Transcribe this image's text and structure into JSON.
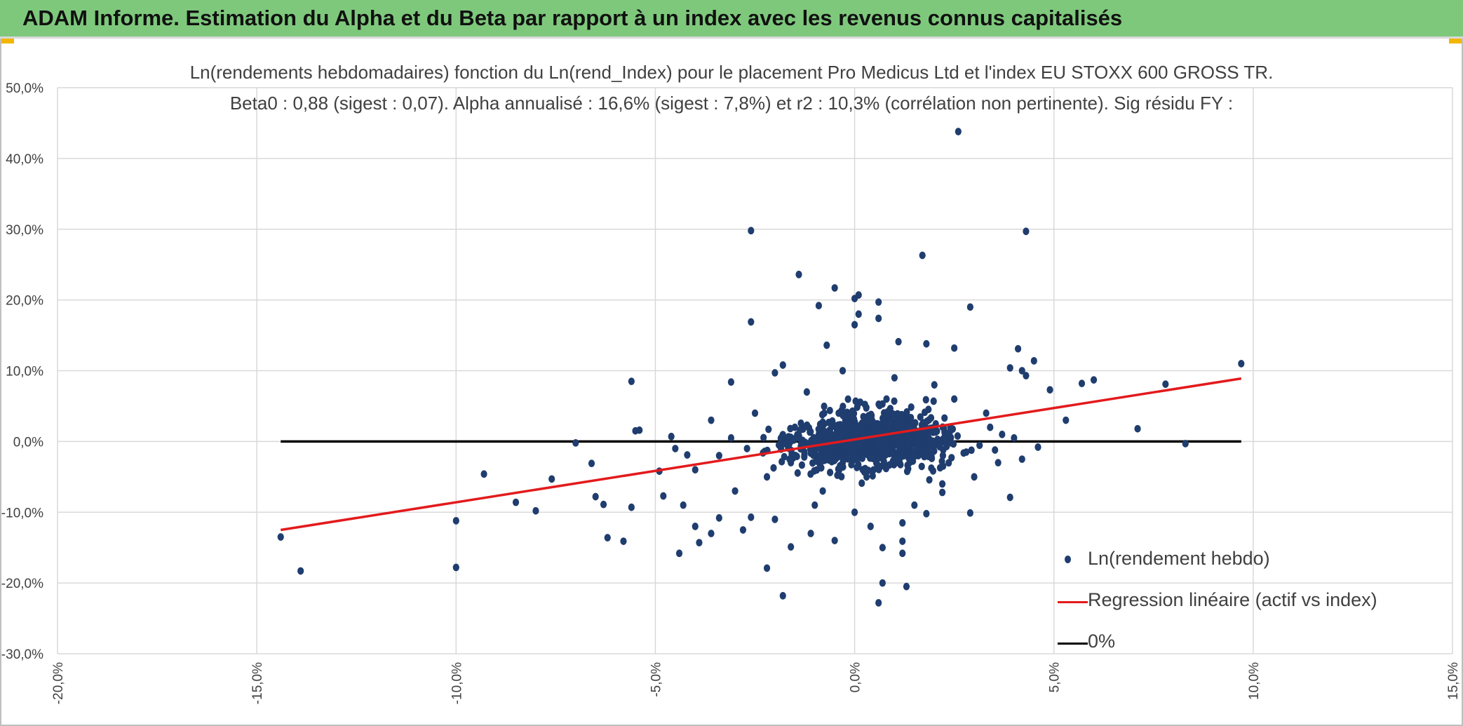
{
  "header": {
    "title": "ADAM Informe. Estimation du Alpha et du Beta par rapport à un index avec les revenus connus capitalisés"
  },
  "colors": {
    "banner": "#7ec87c",
    "points": "#1f3d6e",
    "regression": "#e31a1c",
    "zero_line": "#000000",
    "grid": "#d9d9d9"
  },
  "chart_data": {
    "type": "scatter",
    "title": "Ln(rendements hebdomadaires) fonction du Ln(rend_Index) pour le placement Pro Medicus Ltd et l'index EU STOXX 600 GROSS TR.",
    "subtitle": "Beta0 : 0,88 (sigest : 0,07). Alpha annualisé : 16,6% (sigest : 7,8%) et r2 : 10,3% (corrélation non pertinente). Sig résidu FY :",
    "xlabel": "",
    "ylabel": "",
    "xlim": [
      -0.2,
      0.15
    ],
    "ylim": [
      -0.3,
      0.5
    ],
    "x_ticks": [
      -0.2,
      -0.15,
      -0.1,
      -0.05,
      0.0,
      0.05,
      0.1,
      0.15
    ],
    "x_tick_labels": [
      "-20,0%",
      "-15,0%",
      "-10,0%",
      "-5,0%",
      "0,0%",
      "5,0%",
      "10,0%",
      "15,0%"
    ],
    "y_ticks": [
      -0.3,
      -0.2,
      -0.1,
      0.0,
      0.1,
      0.2,
      0.3,
      0.4,
      0.5
    ],
    "y_tick_labels": [
      "-30,0%",
      "-20,0%",
      "-10,0%",
      "0,0%",
      "10,0%",
      "20,0%",
      "30,0%",
      "40,0%",
      "50,0%"
    ],
    "grid": true,
    "legend_position": "bottom-right",
    "series": [
      {
        "name": "Ln(rendement hebdo)",
        "kind": "scatter",
        "note_dense_cluster": "about 1000 weekly points, dense cluster around x in [-0.04, 0.04], y in [-0.08, 0.08]",
        "points": [
          [
            0.026,
            0.438
          ],
          [
            -0.026,
            0.298
          ],
          [
            0.043,
            0.297
          ],
          [
            0.017,
            0.263
          ],
          [
            -0.014,
            0.236
          ],
          [
            -0.005,
            0.217
          ],
          [
            -0.009,
            0.192
          ],
          [
            0.029,
            0.19
          ],
          [
            0.0,
            0.202
          ],
          [
            0.001,
            0.207
          ],
          [
            0.001,
            0.18
          ],
          [
            0.006,
            0.197
          ],
          [
            0.0,
            0.165
          ],
          [
            -0.026,
            0.169
          ],
          [
            0.006,
            0.174
          ],
          [
            -0.007,
            0.136
          ],
          [
            0.011,
            0.141
          ],
          [
            0.018,
            0.138
          ],
          [
            0.025,
            0.132
          ],
          [
            0.041,
            0.131
          ],
          [
            0.045,
            0.114
          ],
          [
            0.097,
            0.11
          ],
          [
            0.042,
            0.1
          ],
          [
            0.043,
            0.093
          ],
          [
            0.049,
            0.073
          ],
          [
            0.057,
            0.082
          ],
          [
            0.06,
            0.087
          ],
          [
            0.078,
            0.081
          ],
          [
            -0.056,
            0.085
          ],
          [
            -0.031,
            0.084
          ],
          [
            -0.018,
            0.108
          ],
          [
            -0.02,
            0.097
          ],
          [
            0.039,
            0.104
          ],
          [
            0.053,
            0.03
          ],
          [
            0.071,
            0.018
          ],
          [
            0.083,
            -0.003
          ],
          [
            0.046,
            -0.008
          ],
          [
            0.042,
            -0.025
          ],
          [
            0.039,
            -0.079
          ],
          [
            0.029,
            -0.101
          ],
          [
            -0.144,
            -0.135
          ],
          [
            -0.139,
            -0.183
          ],
          [
            -0.1,
            -0.112
          ],
          [
            -0.1,
            -0.178
          ],
          [
            -0.093,
            -0.046
          ],
          [
            -0.085,
            -0.086
          ],
          [
            -0.08,
            -0.098
          ],
          [
            -0.076,
            -0.053
          ],
          [
            -0.07,
            -0.002
          ],
          [
            -0.066,
            -0.031
          ],
          [
            -0.065,
            -0.078
          ],
          [
            -0.063,
            -0.089
          ],
          [
            -0.062,
            -0.136
          ],
          [
            -0.058,
            -0.141
          ],
          [
            -0.056,
            -0.093
          ],
          [
            -0.054,
            0.016
          ],
          [
            -0.055,
            0.015
          ],
          [
            -0.049,
            -0.042
          ],
          [
            -0.048,
            -0.077
          ],
          [
            -0.046,
            0.007
          ],
          [
            -0.044,
            -0.158
          ],
          [
            -0.043,
            -0.09
          ],
          [
            -0.042,
            -0.019
          ],
          [
            -0.04,
            -0.12
          ],
          [
            -0.039,
            -0.143
          ],
          [
            -0.036,
            -0.13
          ],
          [
            -0.034,
            -0.108
          ],
          [
            -0.028,
            -0.125
          ],
          [
            -0.026,
            -0.107
          ],
          [
            -0.022,
            -0.179
          ],
          [
            -0.018,
            -0.218
          ],
          [
            -0.016,
            -0.149
          ],
          [
            -0.011,
            -0.13
          ],
          [
            -0.005,
            -0.14
          ],
          [
            0.0,
            -0.1
          ],
          [
            0.007,
            -0.15
          ],
          [
            0.006,
            -0.228
          ],
          [
            0.007,
            -0.2
          ],
          [
            0.012,
            -0.158
          ],
          [
            0.012,
            -0.141
          ],
          [
            0.013,
            -0.205
          ],
          [
            0.018,
            -0.102
          ],
          [
            0.022,
            -0.072
          ],
          [
            0.012,
            -0.115
          ],
          [
            -0.02,
            -0.11
          ],
          [
            0.004,
            -0.12
          ],
          [
            -0.01,
            -0.09
          ],
          [
            0.015,
            -0.09
          ],
          [
            -0.03,
            -0.07
          ],
          [
            0.03,
            -0.05
          ],
          [
            0.025,
            0.06
          ],
          [
            -0.012,
            0.07
          ],
          [
            0.01,
            0.09
          ],
          [
            -0.003,
            0.1
          ],
          [
            0.02,
            0.08
          ],
          [
            0.033,
            0.04
          ],
          [
            0.036,
            -0.03
          ],
          [
            -0.036,
            0.03
          ],
          [
            -0.04,
            -0.04
          ],
          [
            0.034,
            0.02
          ],
          [
            -0.025,
            0.04
          ],
          [
            -0.022,
            -0.05
          ],
          [
            0.022,
            -0.06
          ],
          [
            -0.008,
            -0.07
          ],
          [
            0.008,
            0.06
          ],
          [
            0.003,
            -0.05
          ],
          [
            -0.004,
            0.04
          ],
          [
            0.014,
            0.03
          ],
          [
            -0.015,
            0.02
          ],
          [
            0.016,
            -0.02
          ],
          [
            -0.016,
            -0.03
          ],
          [
            0.005,
            0.01
          ],
          [
            -0.002,
            0.0
          ],
          [
            0.009,
            -0.01
          ],
          [
            -0.009,
            0.01
          ],
          [
            0.001,
            0.02
          ],
          [
            0.011,
            0.005
          ],
          [
            -0.006,
            -0.015
          ],
          [
            0.019,
            0.015
          ],
          [
            -0.019,
            -0.005
          ],
          [
            0.024,
            0.0
          ],
          [
            -0.027,
            -0.01
          ],
          [
            0.028,
            -0.015
          ],
          [
            -0.031,
            0.005
          ],
          [
            0.037,
            0.01
          ],
          [
            -0.034,
            -0.02
          ],
          [
            0.04,
            0.005
          ],
          [
            -0.045,
            -0.01
          ]
        ]
      },
      {
        "name": "Regression linéaire (actif vs index)",
        "kind": "line",
        "x": [
          -0.144,
          0.097
        ],
        "y": [
          -0.125,
          0.089
        ]
      },
      {
        "name": "0%",
        "kind": "line",
        "x": [
          -0.144,
          0.097
        ],
        "y": [
          0.0,
          0.0
        ]
      }
    ]
  }
}
